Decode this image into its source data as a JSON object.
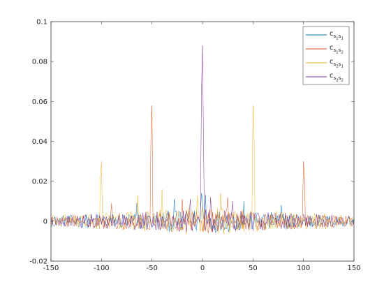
{
  "chart_data": {
    "type": "line",
    "title": "",
    "xlabel": "",
    "ylabel": "",
    "xlim": [
      -150,
      150
    ],
    "ylim": [
      -0.02,
      0.1
    ],
    "grid": false,
    "legend_position": "top-right",
    "x_ticks": [
      -150,
      -100,
      -50,
      0,
      50,
      100,
      150
    ],
    "x_tick_labels": [
      "-150",
      "-100",
      "-50",
      "0",
      "50",
      "100",
      "150"
    ],
    "y_ticks": [
      -0.02,
      0,
      0.02,
      0.04,
      0.06,
      0.08,
      0.1
    ],
    "y_tick_labels": [
      "-0.02",
      "0",
      "0.02",
      "0.04",
      "0.06",
      "0.08",
      "0.1"
    ],
    "x": {
      "start": -150,
      "end": 150,
      "step": 1
    },
    "series": [
      {
        "name": "c_{s1s1}",
        "legend": {
          "base": "c",
          "sub1": "s",
          "subsub1": "1",
          "sub2": "s",
          "subsub2": "1"
        },
        "color": "#0072BD",
        "noise_amplitude": 0.006,
        "peaks": [
          {
            "x": -1,
            "y": 0.014
          },
          {
            "x": 0,
            "y": 0.011
          },
          {
            "x": 3,
            "y": 0.013
          },
          {
            "x": -28,
            "y": 0.011
          },
          {
            "x": 41,
            "y": 0.01
          },
          {
            "x": -65,
            "y": 0.009
          },
          {
            "x": 78,
            "y": 0.008
          }
        ]
      },
      {
        "name": "c_{s1s2}",
        "legend": {
          "base": "c",
          "sub1": "s",
          "subsub1": "1",
          "sub2": "s",
          "subsub2": "2"
        },
        "color": "#D95319",
        "noise_amplitude": 0.006,
        "peaks": [
          {
            "x": -50,
            "y": 0.058
          },
          {
            "x": -51,
            "y": 0.044
          },
          {
            "x": 100,
            "y": 0.03
          },
          {
            "x": 101,
            "y": 0.022
          },
          {
            "x": -20,
            "y": 0.011
          },
          {
            "x": 25,
            "y": 0.012
          },
          {
            "x": -90,
            "y": 0.009
          }
        ]
      },
      {
        "name": "c_{s2s1}",
        "legend": {
          "base": "c",
          "sub1": "s",
          "subsub1": "2",
          "sub2": "s",
          "subsub2": "1"
        },
        "color": "#EDB120",
        "noise_amplitude": 0.007,
        "peaks": [
          {
            "x": 50,
            "y": 0.058
          },
          {
            "x": 51,
            "y": 0.044
          },
          {
            "x": -100,
            "y": 0.03
          },
          {
            "x": -101,
            "y": 0.022
          },
          {
            "x": -40,
            "y": 0.016
          },
          {
            "x": -5,
            "y": 0.013
          },
          {
            "x": 18,
            "y": 0.014
          },
          {
            "x": -64,
            "y": 0.013
          }
        ]
      },
      {
        "name": "c_{s2s2}",
        "legend": {
          "base": "c",
          "sub1": "s",
          "subsub1": "2",
          "sub2": "s",
          "subsub2": "2"
        },
        "color": "#7E2F8E",
        "noise_amplitude": 0.006,
        "peaks": [
          {
            "x": 0,
            "y": 0.088
          },
          {
            "x": -1,
            "y": 0.065
          },
          {
            "x": 1,
            "y": 0.041
          },
          {
            "x": 8,
            "y": 0.012
          },
          {
            "x": -12,
            "y": 0.011
          },
          {
            "x": 30,
            "y": 0.01
          }
        ]
      }
    ]
  }
}
